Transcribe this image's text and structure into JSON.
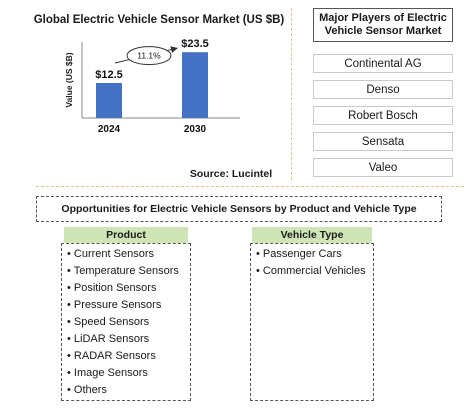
{
  "chart_data": {
    "type": "bar",
    "title": "Global Electric Vehicle Sensor Market (US $B)",
    "categories": [
      "2024",
      "2030"
    ],
    "values": [
      12.5,
      23.5
    ],
    "value_labels": [
      "$12.5",
      "$23.5"
    ],
    "ylabel": "Value (US $B)",
    "xlabel": "",
    "ylim": [
      0,
      25
    ],
    "cagr_label": "11.1%",
    "bar_color": "#4472c4",
    "grid": false,
    "source": "Source: Lucintel"
  },
  "players": {
    "title": "Major Players of Electric Vehicle Sensor Market",
    "items": [
      "Continental AG",
      "Denso",
      "Robert Bosch",
      "Sensata",
      "Valeo"
    ]
  },
  "opportunities": {
    "title": "Opportunities for Electric Vehicle Sensors by Product and Vehicle Type",
    "product": {
      "header": "Product",
      "items": [
        "• Current Sensors",
        "• Temperature Sensors",
        "• Position Sensors",
        "• Pressure Sensors",
        "• Speed Sensors",
        "• LiDAR Sensors",
        "• RADAR Sensors",
        "• Image Sensors",
        "• Others"
      ]
    },
    "vehicle": {
      "header": "Vehicle Type",
      "items": [
        "• Passenger Cars",
        "• Commercial Vehicles"
      ]
    }
  },
  "colors": {
    "header_bg": "#cfe5b8",
    "divider": "#e0c58a"
  }
}
